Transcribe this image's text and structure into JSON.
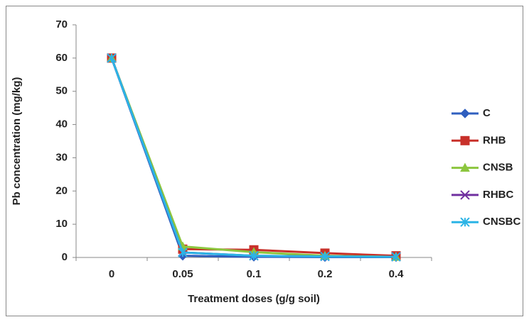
{
  "chart_data": {
    "type": "line",
    "xlabel": "Treatment doses (g/g soil)",
    "ylabel": "Pb concentration (mg/kg)",
    "categories": [
      "0",
      "0.05",
      "0.1",
      "0.2",
      "0.4"
    ],
    "series": [
      {
        "name": "C",
        "color": "#2f5fbf",
        "marker": "diamond",
        "values": [
          60,
          0.5,
          0.2,
          0.1,
          0.1
        ]
      },
      {
        "name": "RHB",
        "color": "#c8302a",
        "marker": "square",
        "values": [
          60,
          2.5,
          2.3,
          1.3,
          0.5
        ]
      },
      {
        "name": "CNSB",
        "color": "#8cc63e",
        "marker": "triangle",
        "values": [
          60,
          3.3,
          1.6,
          0.5,
          0.2
        ]
      },
      {
        "name": "RHBC",
        "color": "#7030a0",
        "marker": "x",
        "values": [
          60,
          1.5,
          0.5,
          0.3,
          0.2
        ]
      },
      {
        "name": "CNSBC",
        "color": "#2cb4e6",
        "marker": "star",
        "values": [
          60,
          1.5,
          0.5,
          0.3,
          0.2
        ]
      }
    ],
    "ylim": [
      0,
      70
    ],
    "yticks": [
      0,
      10,
      20,
      30,
      40,
      50,
      60,
      70
    ],
    "grid": false,
    "legend": "right"
  }
}
